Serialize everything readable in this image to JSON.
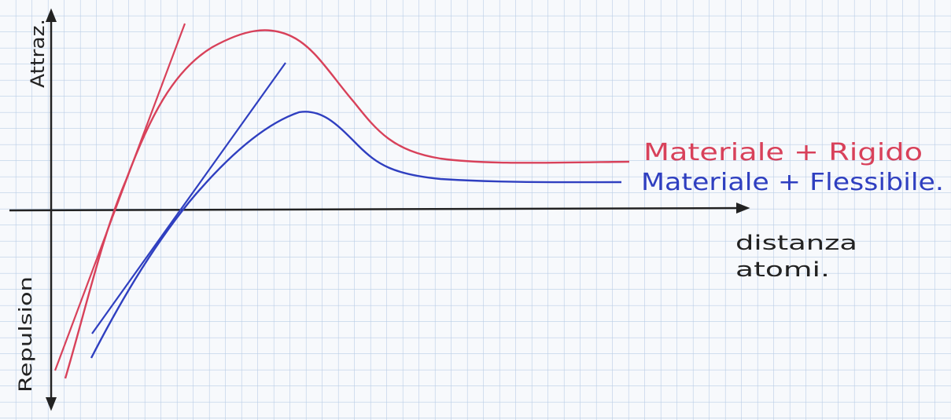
{
  "axes": {
    "y_top": "Attraz.",
    "y_bottom": "Repulsion",
    "x_label": [
      "distanza",
      "atomi."
    ]
  },
  "curves": [
    {
      "label": "Materiale + Rigido"
    },
    {
      "label": "Materiale + Flessibile."
    }
  ]
}
